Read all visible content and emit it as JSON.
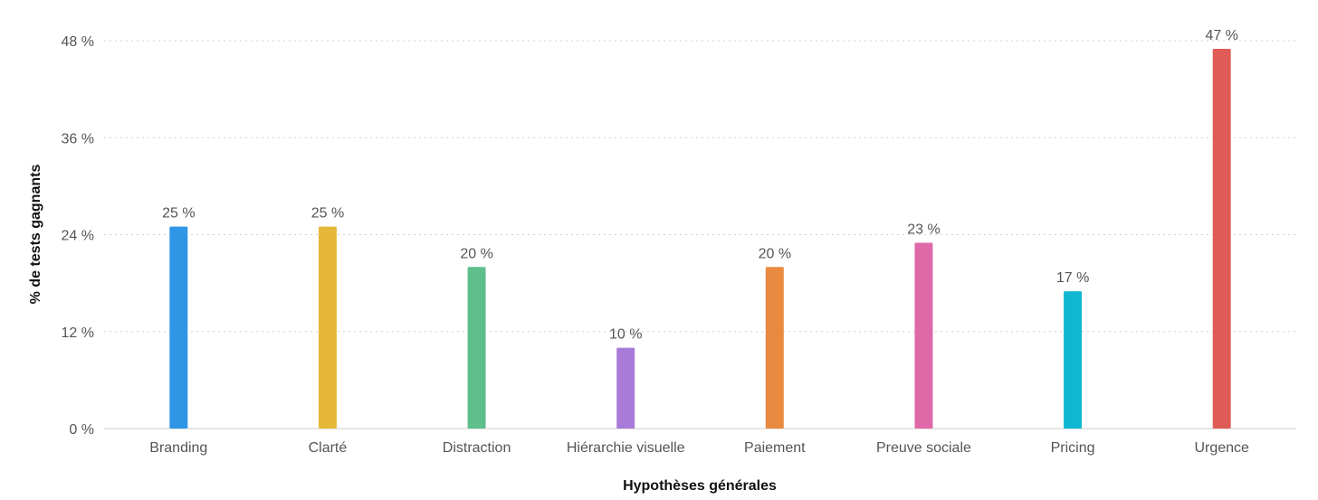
{
  "chart_data": {
    "type": "bar",
    "xlabel": "Hypothèses générales",
    "ylabel": "% de tests gagnants",
    "ylim": [
      0,
      48
    ],
    "yticks": [
      0,
      12,
      24,
      36,
      48
    ],
    "ytick_suffix": " %",
    "grid": true,
    "categories": [
      "Branding",
      "Clarté",
      "Distraction",
      "Hiérarchie visuelle",
      "Paiement",
      "Preuve sociale",
      "Pricing",
      "Urgence"
    ],
    "values": [
      25,
      25,
      20,
      10,
      20,
      23,
      17,
      47
    ],
    "value_labels": [
      "25 %",
      "25 %",
      "20 %",
      "10 %",
      "20 %",
      "23 %",
      "17 %",
      "47 %"
    ],
    "colors": [
      "#2f96e6",
      "#e6b83a",
      "#5fbf8c",
      "#a97bd9",
      "#e98a41",
      "#df68a8",
      "#10b7d2",
      "#df5b55"
    ]
  }
}
